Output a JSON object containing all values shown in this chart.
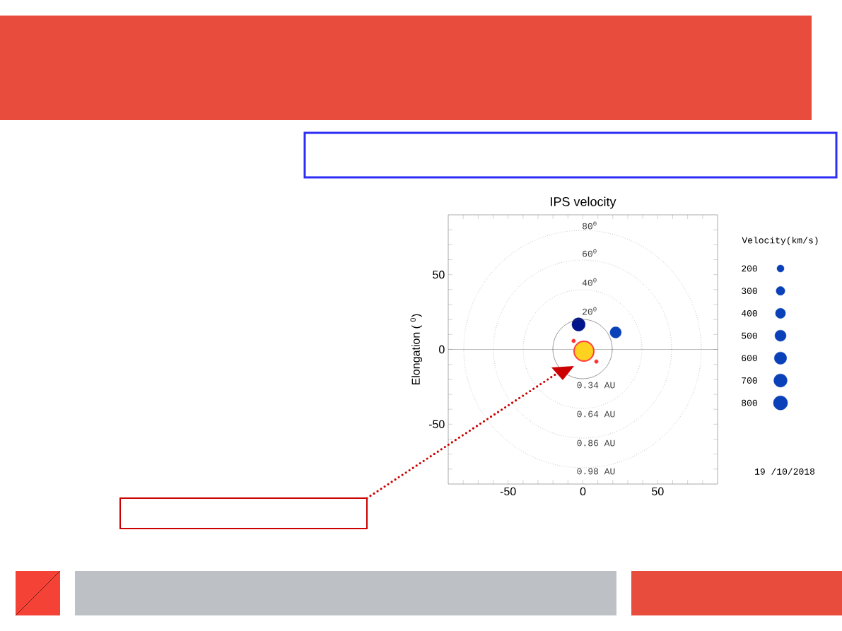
{
  "chart_data": {
    "type": "bubble",
    "title": "IPS velocity",
    "ylabel": "Elongation ( $^{0}$)",
    "legend_title": "Velocity(km/s)",
    "xlim": [
      -90,
      90
    ],
    "ylim": [
      -90,
      90
    ],
    "xticks": [
      {
        "value": -80,
        "label": null
      },
      {
        "value": -70,
        "label": null
      },
      {
        "value": -60,
        "label": null
      },
      -50,
      {
        "value": -40,
        "label": null
      },
      {
        "value": -30,
        "label": null
      },
      {
        "value": -20,
        "label": null
      },
      {
        "value": -10,
        "label": null
      },
      0,
      {
        "value": 10,
        "label": null
      },
      {
        "value": 20,
        "label": null
      },
      {
        "value": 30,
        "label": null
      },
      {
        "value": 40,
        "label": null
      },
      50,
      {
        "value": 60,
        "label": null
      },
      {
        "value": 70,
        "label": null
      },
      {
        "value": 80,
        "label": null
      }
    ],
    "yticks": [
      {
        "value": -80,
        "label": null
      },
      {
        "value": -70,
        "label": null
      },
      {
        "value": -60,
        "label": null
      },
      -50,
      {
        "value": -40,
        "label": null
      },
      {
        "value": -30,
        "label": null
      },
      {
        "value": -20,
        "label": null
      },
      {
        "value": -10,
        "label": null
      },
      0,
      {
        "value": 10,
        "label": null
      },
      {
        "value": 20,
        "label": null
      },
      {
        "value": 30,
        "label": null
      },
      {
        "value": 40,
        "label": null
      },
      50,
      {
        "value": 60,
        "label": null
      },
      {
        "value": 70,
        "label": null
      },
      {
        "value": 80,
        "label": null
      }
    ],
    "size_legend": [
      200,
      300,
      400,
      500,
      600,
      700,
      800
    ],
    "series": [
      {
        "x": [
          -2.9,
          21.9
        ],
        "values": [
          16.7,
          11.4
        ],
        "sizes": [
          700,
          500
        ],
        "colors": [
          "#00148c",
          "#0a40b8"
        ]
      },
      {
        "type": "scatter",
        "color": "#ff3030",
        "x": [
          -6.2,
          9
        ],
        "values": [
          5.7,
          -8.1
        ]
      }
    ],
    "ref_lines": [
      {
        "axis": "y",
        "value": 0,
        "color": "#808080"
      }
    ],
    "annotations": [
      "20$^{0}$",
      "40$^{0}$",
      "60$^{0}$",
      "80$^{0}$",
      "0.34 AU",
      "0.64 AU",
      "0.86 AU",
      "0.98 AU",
      "19 /10/2018"
    ]
  }
}
